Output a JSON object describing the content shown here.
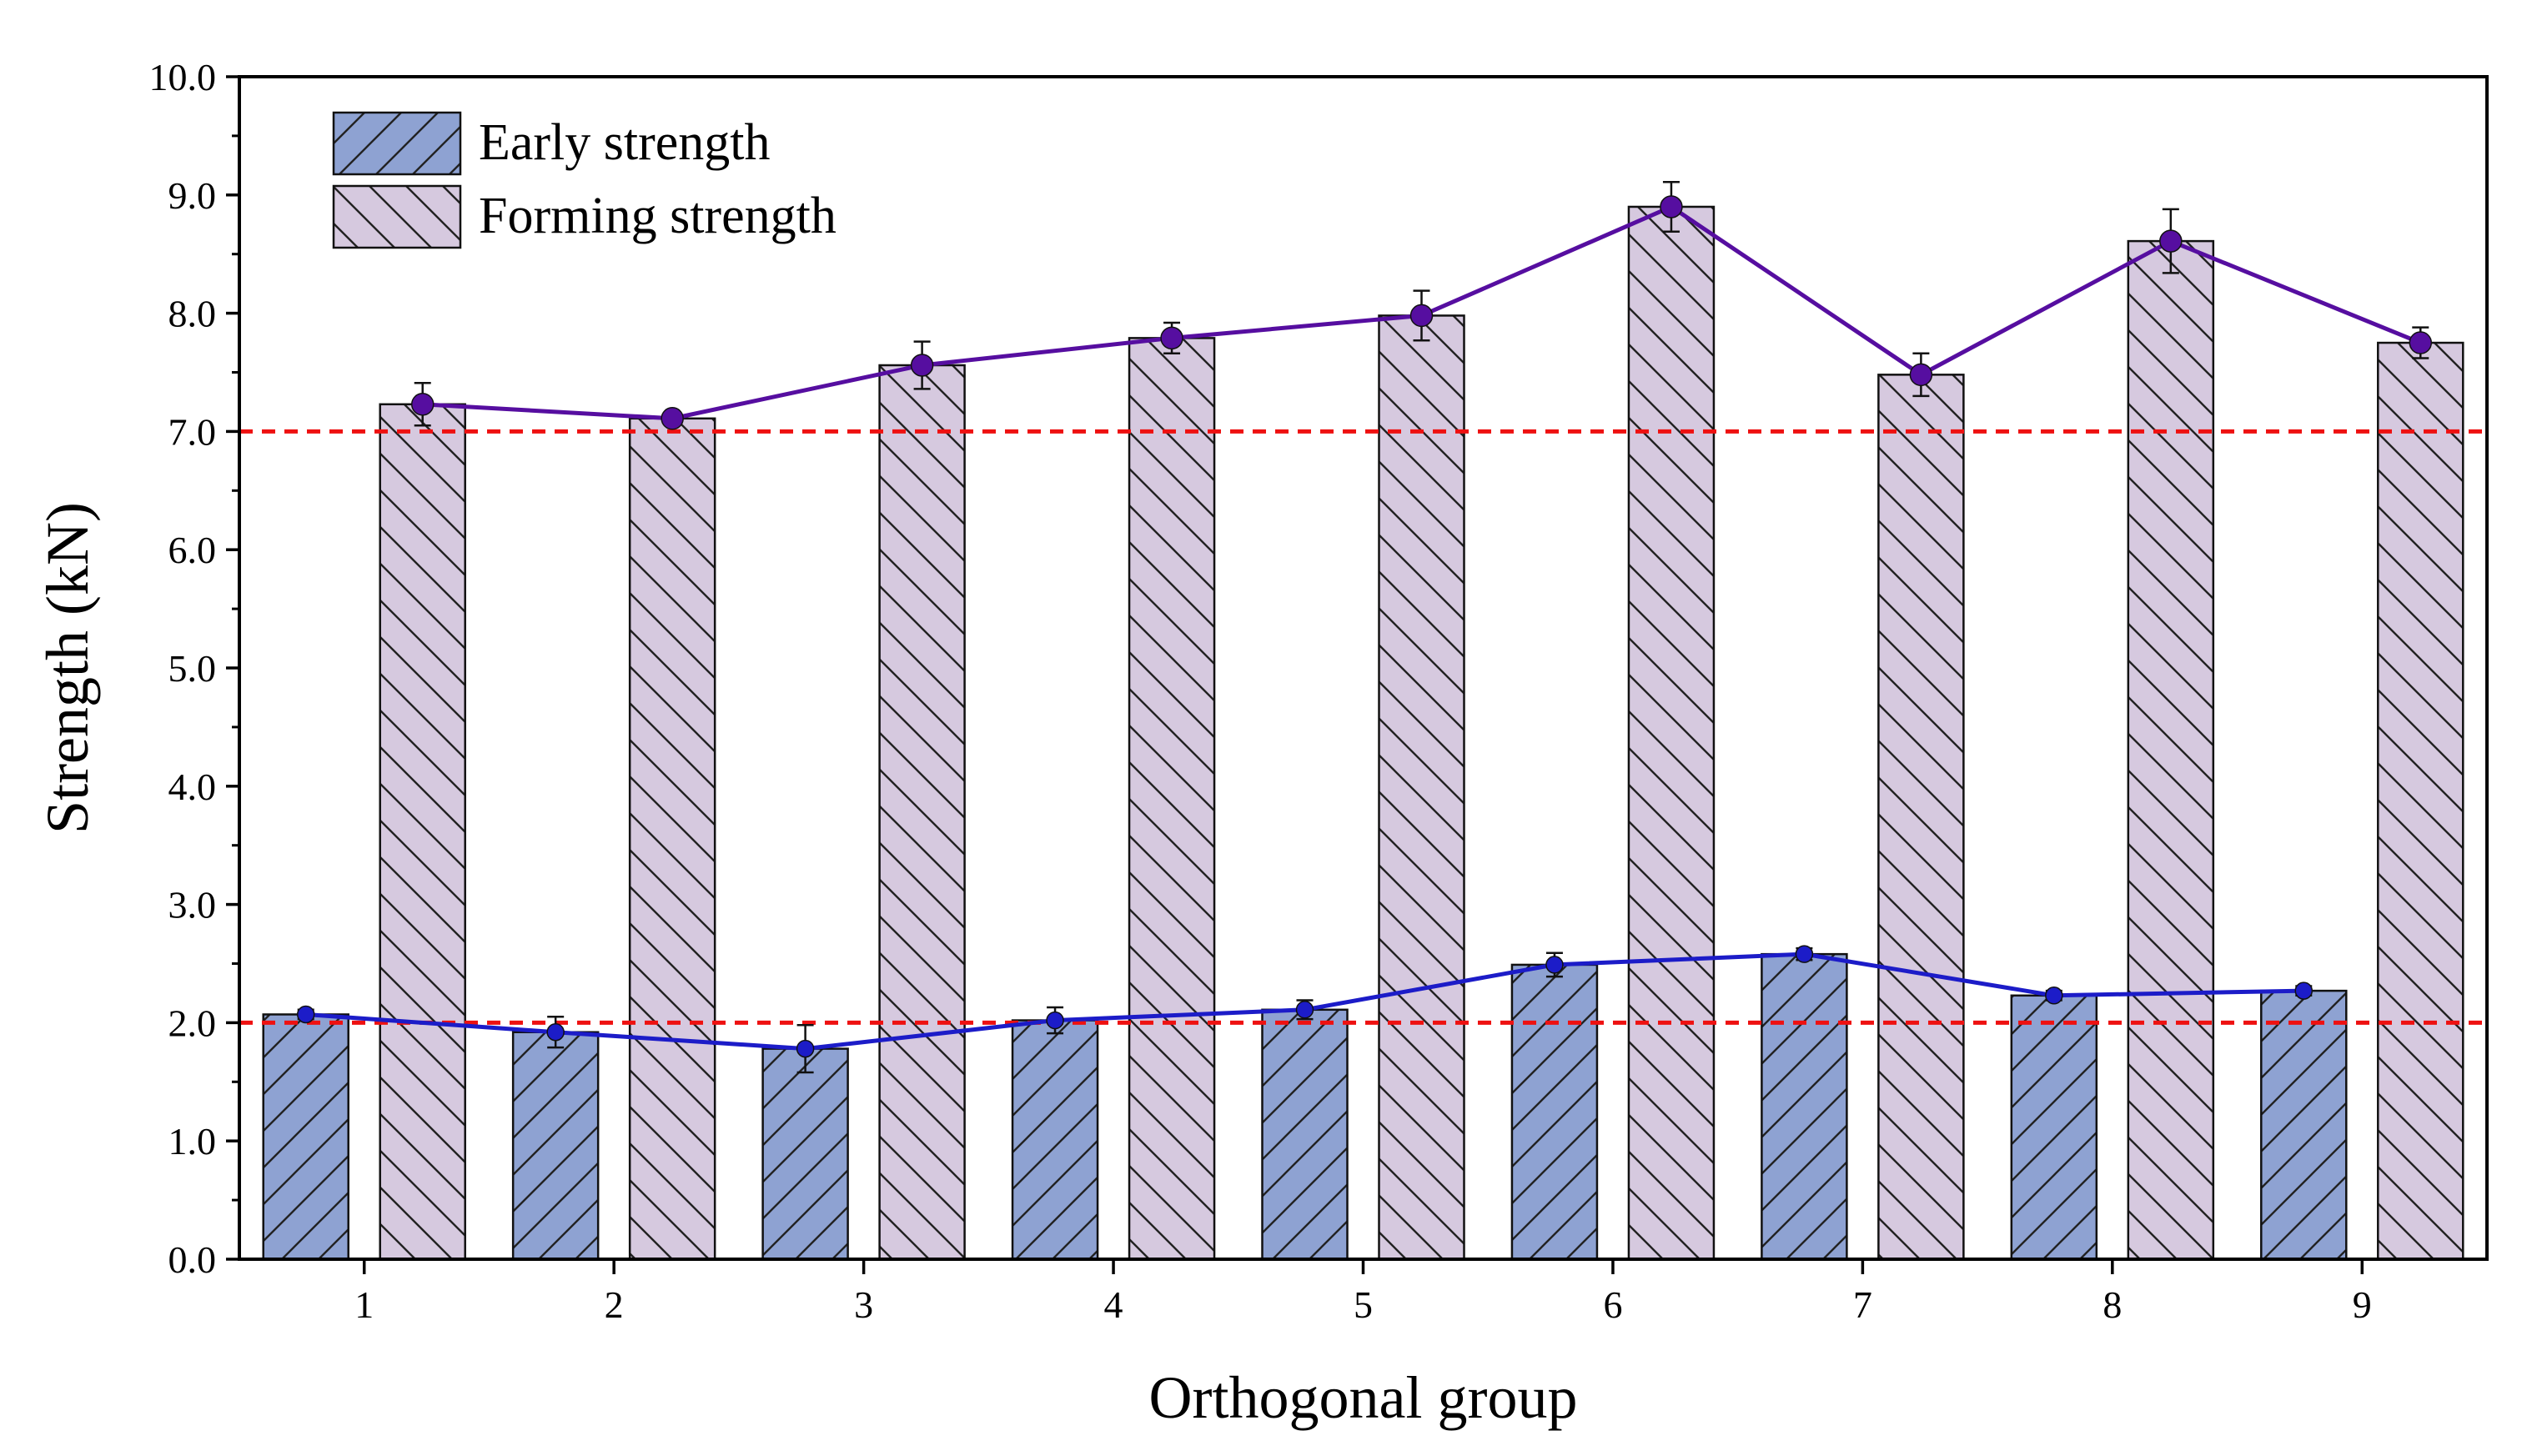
{
  "chart_data": {
    "type": "bar",
    "title": "",
    "xlabel": "Orthogonal group",
    "ylabel": "Strength (kN)",
    "ylim": [
      0,
      10
    ],
    "yticks": [
      "0.0",
      "1.0",
      "2.0",
      "3.0",
      "4.0",
      "5.0",
      "6.0",
      "7.0",
      "8.0",
      "9.0",
      "10.0"
    ],
    "categories": [
      "1",
      "2",
      "3",
      "4",
      "5",
      "6",
      "7",
      "8",
      "9"
    ],
    "series": [
      {
        "name": "Early strength",
        "values": [
          2.07,
          1.92,
          1.78,
          2.02,
          2.11,
          2.49,
          2.58,
          2.23,
          2.27
        ],
        "errors": [
          0.04,
          0.13,
          0.2,
          0.11,
          0.08,
          0.1,
          0.05,
          0.04,
          0.04
        ],
        "color": "#8ea2d2",
        "line_color": "#1c1cc8",
        "hatch": "forward"
      },
      {
        "name": "Forming strength",
        "values": [
          7.23,
          7.11,
          7.56,
          7.79,
          7.98,
          8.9,
          7.48,
          8.61,
          7.75
        ],
        "errors": [
          0.18,
          0.04,
          0.2,
          0.13,
          0.21,
          0.21,
          0.18,
          0.27,
          0.13
        ],
        "color": "#d6c9df",
        "line_color": "#560ea0",
        "hatch": "backward"
      }
    ],
    "reference_lines": [
      2.0,
      7.0
    ],
    "reference_line_color": "#ee1111",
    "legend": "top-left",
    "grid": false
  }
}
